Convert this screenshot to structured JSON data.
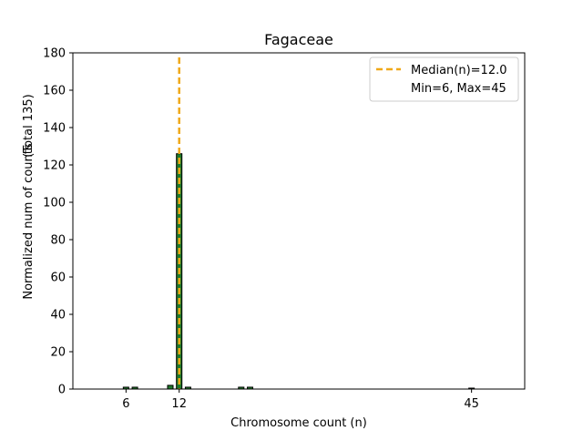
{
  "chart_data": {
    "type": "bar",
    "title": "Fagaceae",
    "xlabel": "Chromosome count (n)",
    "ylabel": "Normalized num of counts",
    "ylabel_note": "(Total 135)",
    "xlim": [
      0,
      51
    ],
    "ylim": [
      0,
      180
    ],
    "xticks": [
      6,
      12,
      45
    ],
    "yticks": [
      0,
      20,
      40,
      60,
      80,
      100,
      120,
      140,
      160,
      180
    ],
    "grid": false,
    "legend_position": "top-right",
    "bar_color": "#1f7a2a",
    "bar_edge_color": "#000000",
    "median_color": "#f0a818",
    "bars": [
      {
        "x": 6,
        "value": 1
      },
      {
        "x": 7,
        "value": 1
      },
      {
        "x": 11,
        "value": 2
      },
      {
        "x": 12,
        "value": 126
      },
      {
        "x": 13,
        "value": 1
      },
      {
        "x": 19,
        "value": 1
      },
      {
        "x": 20,
        "value": 1
      },
      {
        "x": 45,
        "value": 0.5
      }
    ],
    "median": 12.0,
    "legend": {
      "median_label": "Median(n)=12.0",
      "range_label": "Min=6, Max=45"
    }
  }
}
